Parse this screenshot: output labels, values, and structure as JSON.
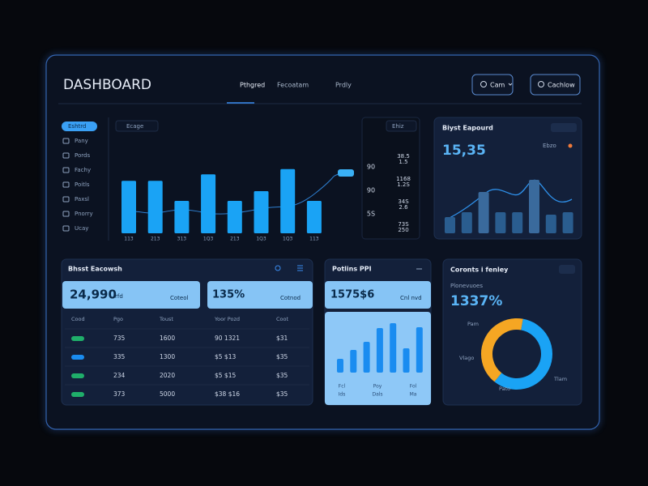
{
  "header": {
    "title": "DASHBOARD",
    "nav": [
      "Pthgred",
      "Fecoatam",
      "Prdly"
    ],
    "buttons": [
      "Cam",
      "Cachlow"
    ]
  },
  "sidebar": {
    "items": [
      "Eshtrd",
      "Pany",
      "Pords",
      "Fachy",
      "Poitls",
      "Paxsl",
      "Pnorry",
      "Ucay"
    ]
  },
  "main_chart": {
    "dropdown": "Ecage",
    "legend": "Ehiz",
    "color": "#1aa3f5",
    "categories": [
      "113",
      "213",
      "313",
      "1Q3",
      "213",
      "1Q3",
      "1Q3",
      "113"
    ],
    "values": [
      81,
      81,
      50,
      91,
      50,
      65,
      99,
      50
    ],
    "side_labels": [
      "90",
      "90",
      "5S"
    ],
    "right_list": [
      [
        "38.5",
        "1.5"
      ],
      [
        "1168",
        "1.2S"
      ],
      [
        "34S",
        "2.6"
      ],
      [
        "73S",
        "250"
      ]
    ]
  },
  "summary_card": {
    "title": "Biyst Eapourd",
    "value": "15,35",
    "badge": "Ebzo",
    "color": "#2a5d8f",
    "highlight": "#3a6a9c",
    "values": [
      20,
      26,
      51,
      26,
      26,
      66,
      23,
      26
    ]
  },
  "table_card": {
    "title": "Bhsst Eacowsh",
    "tiles": [
      {
        "value": "24,990",
        "unit": "rfd",
        "action": "Coteol"
      },
      {
        "value": "135%",
        "unit": "",
        "action": "Cotnod"
      }
    ],
    "columns": [
      "Cood",
      "Pgo",
      "Toust",
      "Yoor Pozd",
      "Coot"
    ],
    "tag_colors": [
      "#1fae6a",
      "#1a8cf0",
      "#1fae6a",
      "#1fae6a"
    ],
    "rows": [
      [
        "735",
        "1600",
        "90 1321",
        "$31"
      ],
      [
        "335",
        "1300",
        "$5 $13",
        "$35"
      ],
      [
        "234",
        "2020",
        "$5 $15",
        "$35"
      ],
      [
        "373",
        "5000",
        "$38 $16",
        "$35"
      ]
    ]
  },
  "kpi_card": {
    "title": "Potlins PPI",
    "tile": {
      "value": "1575$6",
      "action": "Cnl nvd"
    },
    "color": "#1a8cf0",
    "values": [
      17,
      28,
      38,
      55,
      61,
      30,
      56
    ],
    "labels_top": [
      "Fcl",
      "Poy",
      "Fol"
    ],
    "labels_bottom": [
      "Ids",
      "Dals",
      "Ma"
    ]
  },
  "donut_card": {
    "title": "Coronts i fenley",
    "subtitle": "Plonevuoes",
    "value": "1337%",
    "segments": [
      {
        "value": 58,
        "color": "#1aa3f5"
      },
      {
        "value": 42,
        "color": "#f5a623"
      }
    ],
    "labels": [
      "Pam",
      "Vlago",
      "Tlam",
      "Pato"
    ]
  }
}
